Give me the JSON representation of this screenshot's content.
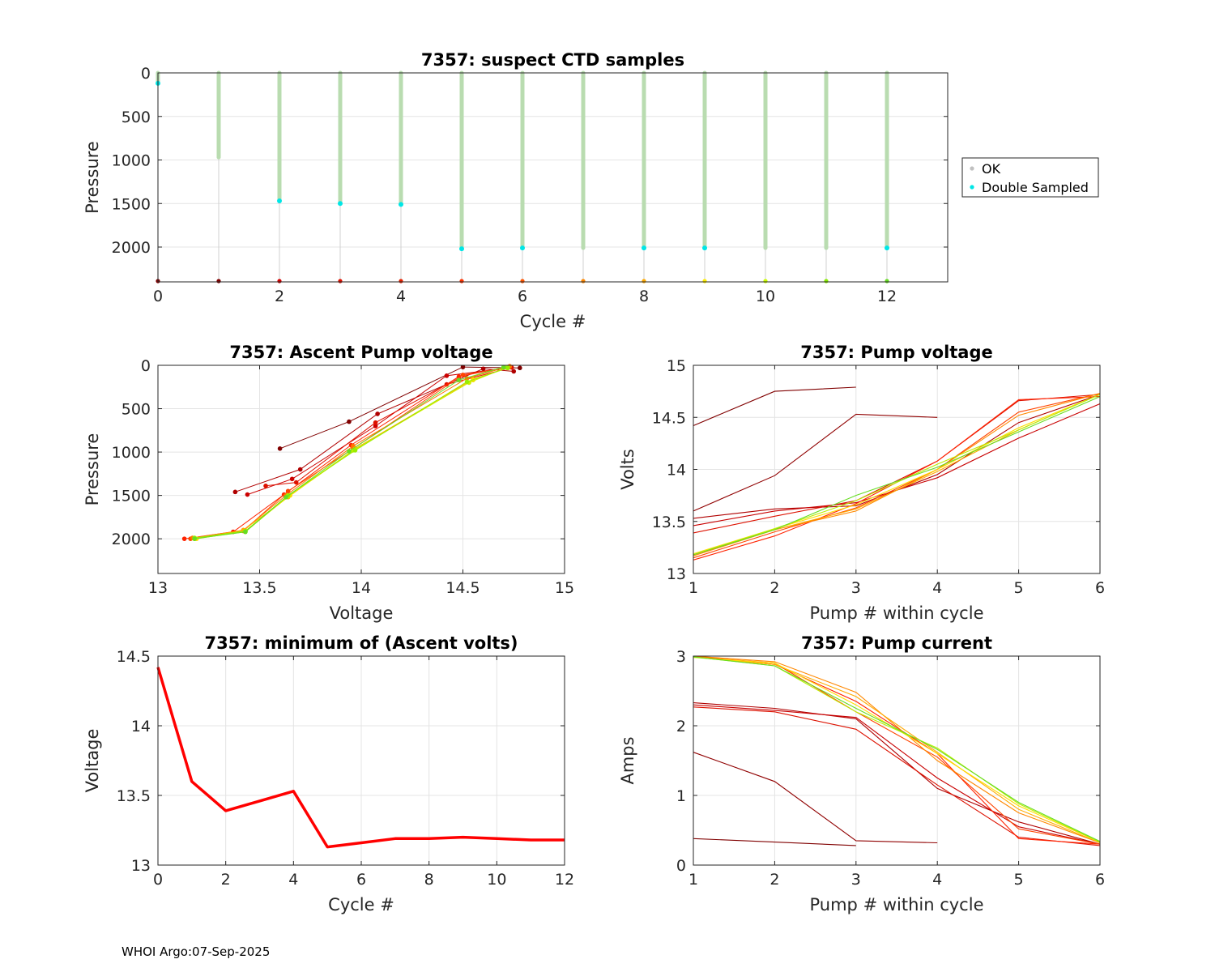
{
  "footer": "WHOI Argo:07-Sep-2025",
  "chart_data": [
    {
      "id": "ctd",
      "type": "scatter",
      "title": "7357: suspect CTD samples",
      "xlabel": "Cycle #",
      "ylabel": "Pressure",
      "xlim": [
        0,
        13
      ],
      "ylim": [
        0,
        2400
      ],
      "y_reversed": true,
      "xticks": [
        0,
        2,
        4,
        6,
        8,
        10,
        12
      ],
      "yticks": [
        0,
        500,
        1000,
        1500,
        2000
      ],
      "grid": true,
      "legend": {
        "position": "right",
        "entries": [
          {
            "label": "OK",
            "color": "#c0c0c0"
          },
          {
            "label": "Double Sampled",
            "color": "#00e6e6"
          }
        ]
      },
      "profiles": [
        {
          "cycle": 0,
          "max_pressure": 120,
          "double_sampled": [
            120
          ]
        },
        {
          "cycle": 1,
          "max_pressure": 970,
          "double_sampled": []
        },
        {
          "cycle": 2,
          "max_pressure": 1470,
          "double_sampled": [
            1470
          ]
        },
        {
          "cycle": 3,
          "max_pressure": 1500,
          "double_sampled": [
            1500
          ]
        },
        {
          "cycle": 4,
          "max_pressure": 1510,
          "double_sampled": [
            1510
          ]
        },
        {
          "cycle": 5,
          "max_pressure": 2020,
          "double_sampled": [
            2020
          ]
        },
        {
          "cycle": 6,
          "max_pressure": 2010,
          "double_sampled": [
            2010
          ]
        },
        {
          "cycle": 7,
          "max_pressure": 2010,
          "double_sampled": []
        },
        {
          "cycle": 8,
          "max_pressure": 2010,
          "double_sampled": [
            2010
          ]
        },
        {
          "cycle": 9,
          "max_pressure": 2010,
          "double_sampled": [
            2010
          ]
        },
        {
          "cycle": 10,
          "max_pressure": 2010,
          "double_sampled": []
        },
        {
          "cycle": 11,
          "max_pressure": 2010,
          "double_sampled": []
        },
        {
          "cycle": 12,
          "max_pressure": 2010,
          "double_sampled": [
            2010
          ]
        }
      ],
      "cycle_colors": [
        "#800000",
        "#800000",
        "#d40000",
        "#e01000",
        "#e62000",
        "#ff3300",
        "#ff5500",
        "#ff8800",
        "#ffaa00",
        "#ffee00",
        "#ccff00",
        "#88ee00",
        "#66dd22"
      ]
    },
    {
      "id": "ascent",
      "type": "line",
      "title": "7357: Ascent Pump voltage",
      "xlabel": "Voltage",
      "ylabel": "Pressure",
      "xlim": [
        13,
        15
      ],
      "ylim": [
        0,
        2400
      ],
      "y_reversed": true,
      "xticks": [
        13,
        13.5,
        14,
        14.5,
        15
      ],
      "yticks": [
        0,
        500,
        1000,
        1500,
        2000
      ],
      "grid": true,
      "series": [
        {
          "name": "cycle 1",
          "color": "#800000",
          "points": [
            [
              13.6,
              960
            ],
            [
              13.94,
              650
            ],
            [
              14.5,
              20
            ],
            [
              14.78,
              30
            ]
          ]
        },
        {
          "name": "cycle 2",
          "color": "#b00000",
          "points": [
            [
              13.38,
              1460
            ],
            [
              13.7,
              1200
            ],
            [
              14.08,
              560
            ],
            [
              14.6,
              40
            ],
            [
              14.75,
              70
            ]
          ]
        },
        {
          "name": "cycle 3",
          "color": "#cc0000",
          "points": [
            [
              13.44,
              1490
            ],
            [
              13.66,
              1310
            ],
            [
              14.07,
              700
            ],
            [
              14.42,
              120
            ],
            [
              14.72,
              30
            ]
          ]
        },
        {
          "name": "cycle 4",
          "color": "#dd1100",
          "points": [
            [
              13.53,
              1390
            ],
            [
              13.68,
              1350
            ],
            [
              14.07,
              660
            ],
            [
              14.42,
              220
            ],
            [
              14.74,
              25
            ]
          ]
        },
        {
          "name": "cycle 5",
          "color": "#ff2200",
          "points": [
            [
              13.13,
              2000
            ],
            [
              13.37,
              1920
            ],
            [
              13.62,
              1490
            ],
            [
              13.95,
              920
            ],
            [
              14.48,
              130
            ],
            [
              14.72,
              20
            ]
          ]
        },
        {
          "name": "cycle 6",
          "color": "#ff4400",
          "points": [
            [
              13.16,
              2000
            ],
            [
              13.42,
              1910
            ],
            [
              13.64,
              1450
            ],
            [
              13.96,
              960
            ],
            [
              14.5,
              110
            ],
            [
              14.73,
              20
            ]
          ]
        },
        {
          "name": "cycle 7",
          "color": "#ff7700",
          "points": [
            [
              13.17,
              1990
            ],
            [
              13.42,
              1900
            ],
            [
              13.63,
              1500
            ],
            [
              13.96,
              930
            ],
            [
              14.52,
              150
            ],
            [
              14.73,
              10
            ]
          ]
        },
        {
          "name": "cycle 8",
          "color": "#ffaa00",
          "points": [
            [
              13.18,
              2000
            ],
            [
              13.42,
              1900
            ],
            [
              13.64,
              1520
            ],
            [
              13.97,
              960
            ],
            [
              14.55,
              160
            ],
            [
              14.72,
              30
            ]
          ]
        },
        {
          "name": "cycle 9",
          "color": "#ffdd00",
          "points": [
            [
              13.19,
              2000
            ],
            [
              13.43,
              1910
            ],
            [
              13.65,
              1500
            ],
            [
              13.97,
              970
            ],
            [
              14.55,
              170
            ],
            [
              14.72,
              30
            ]
          ]
        },
        {
          "name": "cycle 10",
          "color": "#ccee00",
          "points": [
            [
              13.18,
              2000
            ],
            [
              13.43,
              1920
            ],
            [
              13.64,
              1510
            ],
            [
              13.96,
              980
            ],
            [
              14.53,
              200
            ],
            [
              14.72,
              20
            ]
          ]
        },
        {
          "name": "cycle 11",
          "color": "#99ee00",
          "points": [
            [
              13.18,
              1990
            ],
            [
              13.43,
              1910
            ],
            [
              13.64,
              1500
            ],
            [
              13.97,
              980
            ],
            [
              14.52,
              190
            ],
            [
              14.72,
              30
            ]
          ]
        },
        {
          "name": "cycle 12",
          "color": "#66dd22",
          "points": [
            [
              13.18,
              2000
            ],
            [
              13.43,
              1920
            ],
            [
              13.63,
              1520
            ],
            [
              13.94,
              990
            ],
            [
              14.48,
              170
            ],
            [
              14.7,
              20
            ]
          ]
        }
      ]
    },
    {
      "id": "pumpv",
      "type": "line",
      "title": "7357: Pump voltage",
      "xlabel": "Pump # within cycle",
      "ylabel": "Volts",
      "xlim": [
        1,
        6
      ],
      "ylim": [
        13,
        15
      ],
      "y_reversed": false,
      "xticks": [
        1,
        2,
        3,
        4,
        5,
        6
      ],
      "yticks": [
        13,
        13.5,
        14,
        14.5,
        15
      ],
      "grid": true,
      "series": [
        {
          "name": "cycle 0",
          "color": "#800000",
          "values": [
            14.42,
            14.75,
            14.79
          ]
        },
        {
          "name": "cycle 1",
          "color": "#900000",
          "values": [
            13.6,
            13.94,
            14.53,
            14.5
          ]
        },
        {
          "name": "cycle 2",
          "color": "#b00000",
          "values": [
            13.53,
            13.62,
            13.65,
            13.95,
            14.45,
            14.72
          ]
        },
        {
          "name": "cycle 3",
          "color": "#c80000",
          "values": [
            13.46,
            13.6,
            13.68,
            13.92,
            14.3,
            14.63
          ]
        },
        {
          "name": "cycle 4",
          "color": "#dd1100",
          "values": [
            13.39,
            13.55,
            13.7,
            14.08,
            14.66,
            14.72
          ]
        },
        {
          "name": "cycle 5",
          "color": "#ff2200",
          "values": [
            13.13,
            13.36,
            13.67,
            14.08,
            14.67,
            14.7
          ]
        },
        {
          "name": "cycle 6",
          "color": "#ff4400",
          "values": [
            13.15,
            13.4,
            13.63,
            14.0,
            14.55,
            14.73
          ]
        },
        {
          "name": "cycle 7",
          "color": "#ff8800",
          "values": [
            13.17,
            13.42,
            13.6,
            14.0,
            14.52,
            14.73
          ]
        },
        {
          "name": "cycle 8",
          "color": "#ffaa00",
          "values": [
            13.18,
            13.42,
            13.62,
            13.98,
            14.38,
            14.72
          ]
        },
        {
          "name": "cycle 9",
          "color": "#ffdd00",
          "values": [
            13.19,
            13.43,
            13.66,
            14.0,
            14.4,
            14.72
          ]
        },
        {
          "name": "cycle 10",
          "color": "#bbee00",
          "values": [
            13.18,
            13.43,
            13.7,
            14.05,
            14.38,
            14.72
          ]
        },
        {
          "name": "cycle 12",
          "color": "#66dd22",
          "values": [
            13.18,
            13.42,
            13.75,
            14.02,
            14.36,
            14.7
          ]
        }
      ]
    },
    {
      "id": "minv",
      "type": "line",
      "title": "7357: minimum of (Ascent volts)",
      "xlabel": "Cycle #",
      "ylabel": "Voltage",
      "xlim": [
        0,
        12
      ],
      "ylim": [
        13,
        14.5
      ],
      "y_reversed": false,
      "xticks": [
        0,
        2,
        4,
        6,
        8,
        10,
        12
      ],
      "yticks": [
        13,
        13.5,
        14,
        14.5
      ],
      "grid": true,
      "series": [
        {
          "name": "minimum ascent volts",
          "color": "#ff0000",
          "x": [
            0,
            1,
            2,
            3,
            4,
            5,
            6,
            7,
            8,
            9,
            10,
            11,
            12
          ],
          "values": [
            14.42,
            13.6,
            13.39,
            13.46,
            13.53,
            13.13,
            13.16,
            13.19,
            13.19,
            13.2,
            13.19,
            13.18,
            13.18
          ]
        }
      ]
    },
    {
      "id": "pumpa",
      "type": "line",
      "title": "7357: Pump current",
      "xlabel": "Pump # within cycle",
      "ylabel": "Amps",
      "xlim": [
        1,
        6
      ],
      "ylim": [
        0,
        3
      ],
      "y_reversed": false,
      "xticks": [
        1,
        2,
        3,
        4,
        5,
        6
      ],
      "yticks": [
        0,
        1,
        2,
        3
      ],
      "grid": true,
      "series": [
        {
          "name": "cycle 0",
          "color": "#800000",
          "values": [
            0.38,
            0.33,
            0.28
          ]
        },
        {
          "name": "cycle 1",
          "color": "#900000",
          "values": [
            1.62,
            1.2,
            0.35,
            0.32
          ]
        },
        {
          "name": "cycle 2",
          "color": "#b00000",
          "values": [
            2.33,
            2.25,
            2.1,
            1.1,
            0.62,
            0.3
          ]
        },
        {
          "name": "cycle 3",
          "color": "#c80000",
          "values": [
            2.3,
            2.22,
            2.12,
            1.25,
            0.55,
            0.3
          ]
        },
        {
          "name": "cycle 4",
          "color": "#dd1100",
          "values": [
            2.27,
            2.2,
            1.95,
            1.15,
            0.4,
            0.28
          ]
        },
        {
          "name": "cycle 5",
          "color": "#ff2200",
          "values": [
            3.0,
            2.88,
            2.35,
            1.6,
            0.38,
            0.3
          ]
        },
        {
          "name": "cycle 6",
          "color": "#ff4400",
          "values": [
            2.99,
            2.9,
            2.2,
            1.55,
            0.52,
            0.3
          ]
        },
        {
          "name": "cycle 7",
          "color": "#ff8800",
          "values": [
            3.0,
            2.92,
            2.48,
            1.5,
            0.75,
            0.32
          ]
        },
        {
          "name": "cycle 8",
          "color": "#ffaa00",
          "values": [
            2.99,
            2.88,
            2.42,
            1.62,
            0.8,
            0.32
          ]
        },
        {
          "name": "cycle 9",
          "color": "#ffdd00",
          "values": [
            2.98,
            2.9,
            2.3,
            1.6,
            0.85,
            0.33
          ]
        },
        {
          "name": "cycle 10",
          "color": "#bbee00",
          "values": [
            2.99,
            2.86,
            2.2,
            1.68,
            0.88,
            0.33
          ]
        },
        {
          "name": "cycle 12",
          "color": "#66dd22",
          "values": [
            2.99,
            2.86,
            2.25,
            1.66,
            0.9,
            0.34
          ]
        }
      ]
    }
  ]
}
